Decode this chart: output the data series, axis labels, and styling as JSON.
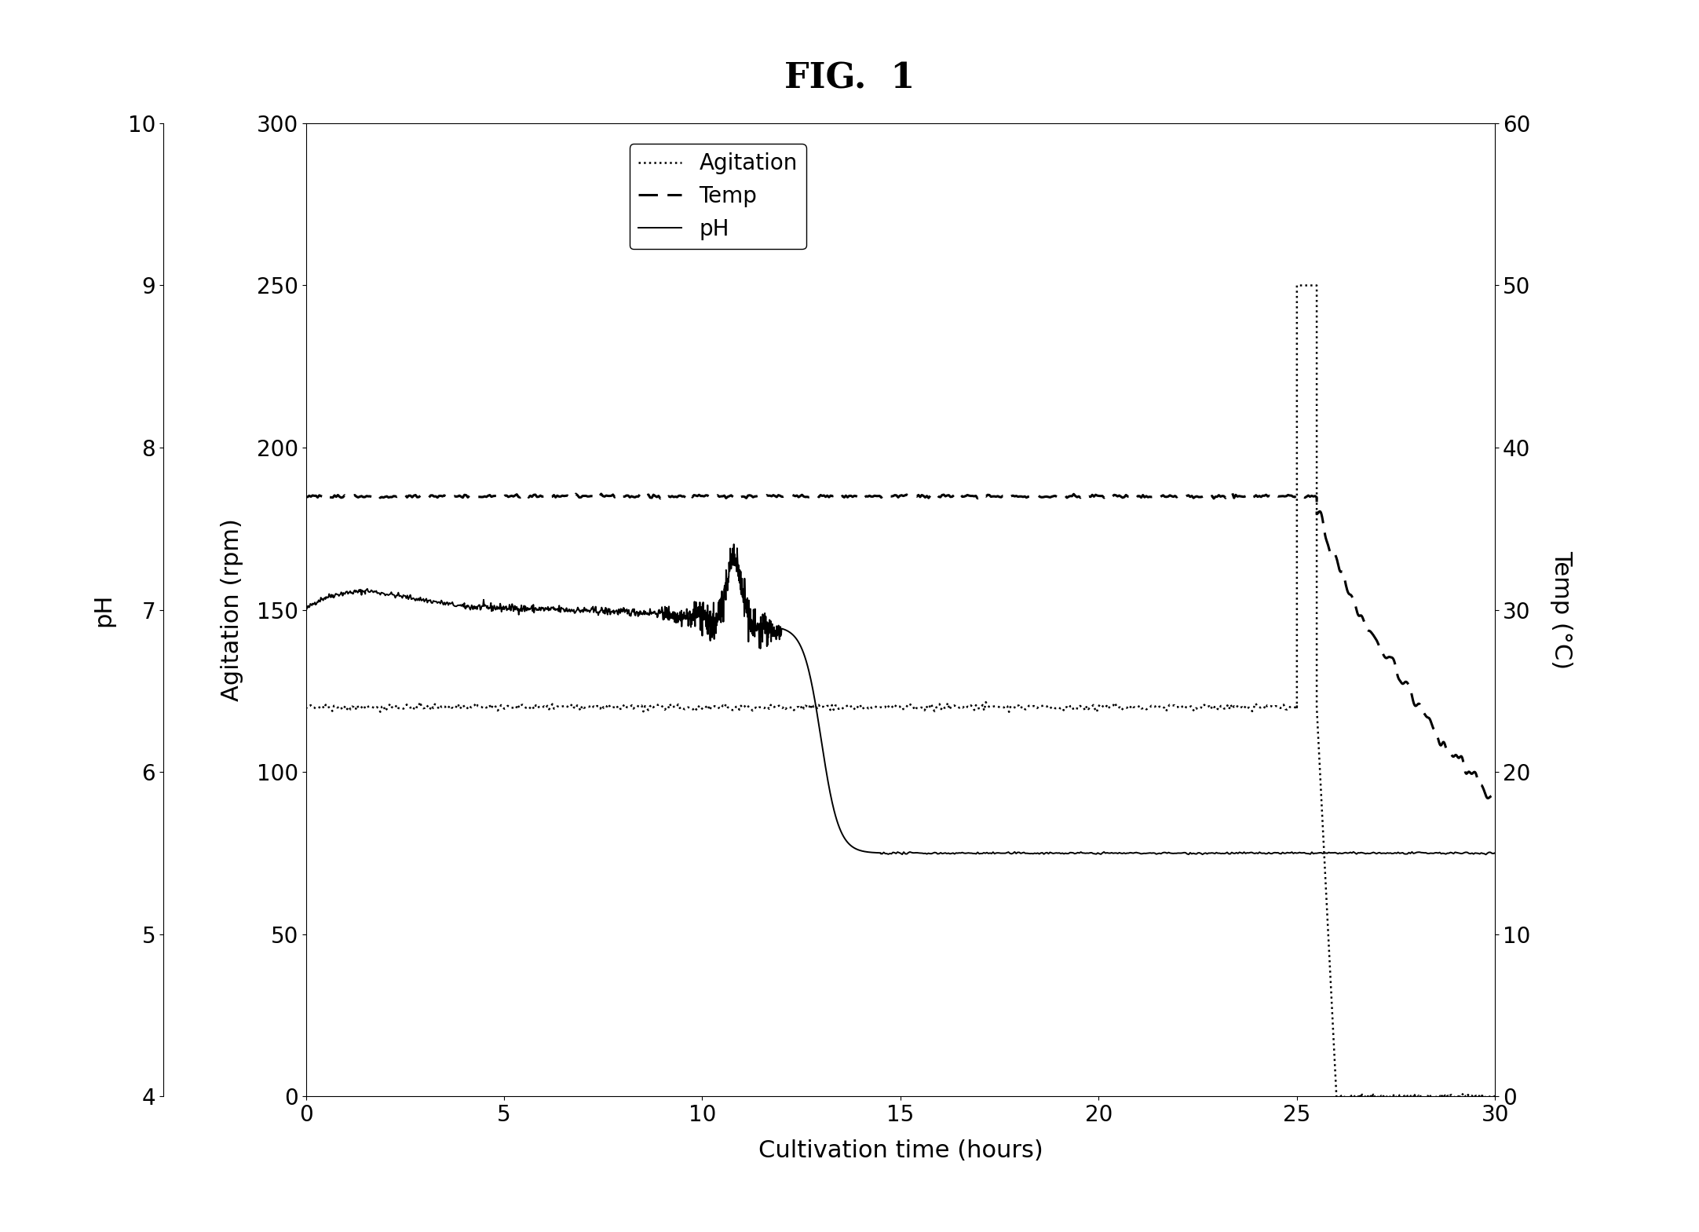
{
  "title": "FIG.  1",
  "xlabel": "Cultivation time (hours)",
  "ylabel_left": "pH",
  "ylabel_middle": "Agitation (rpm)",
  "ylabel_right": "Temp (°C)",
  "xlim": [
    0,
    30
  ],
  "ylim_agitation": [
    0,
    300
  ],
  "ylim_ph": [
    4,
    10
  ],
  "ylim_temp": [
    0,
    60
  ],
  "agitation_constant": 120,
  "agitation_spike_y": 250,
  "temp_constant_c": 37,
  "temp_drop_end_c": 18,
  "ph_initial": 7.05,
  "ph_peak": 7.15,
  "ph_flat": 5.5,
  "ph_drop_start": 12.0,
  "background_color": "#ffffff",
  "line_color": "#000000",
  "fontsize_title": 32,
  "fontsize_labels": 22,
  "fontsize_ticks": 20,
  "fontsize_legend": 20
}
